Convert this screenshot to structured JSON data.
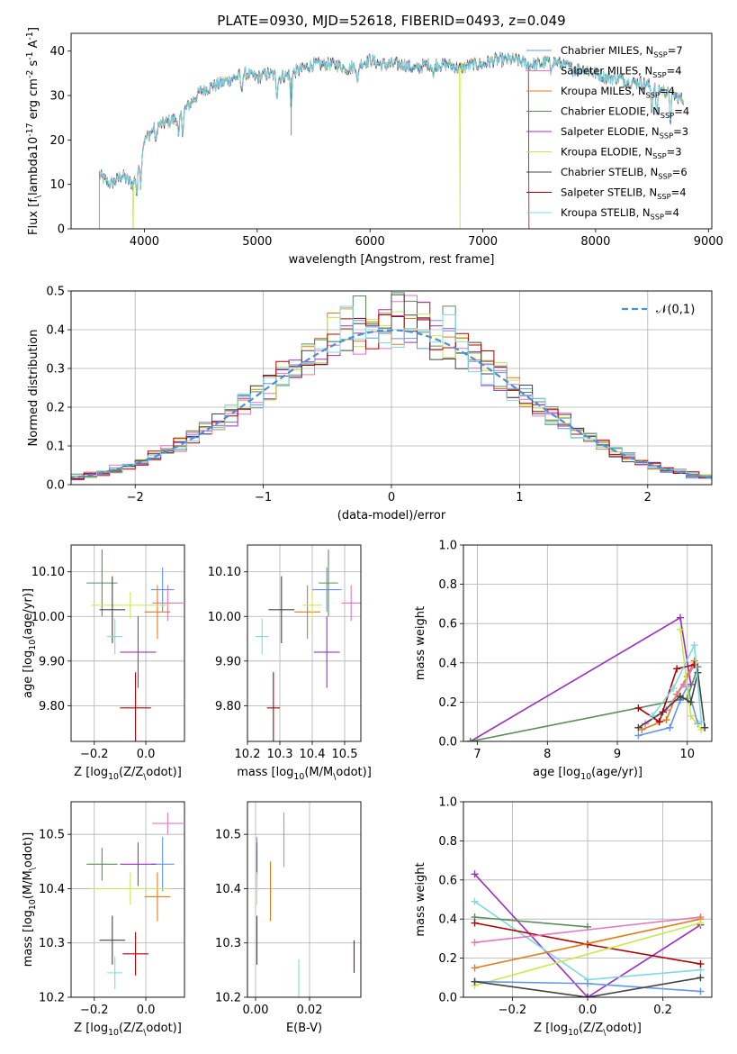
{
  "colors": {
    "chab_miles": "#6495ed",
    "salp_miles": "#e377c2",
    "krou_miles": "#e07b1a",
    "chab_elodie": "#5b8c5a",
    "salp_elodie": "#9b30c0",
    "krou_elodie": "#c9e84b",
    "chab_stelib": "#444444",
    "salp_stelib": "#b30000",
    "krou_stelib": "#80d8e0",
    "normal_curve": "#4a90d9",
    "grid": "#b0b0b0"
  },
  "chart_data": [
    {
      "type": "line",
      "id": "spectrum",
      "title": "PLATE=0930, MJD=52618, FIBERID=0493, z=0.049",
      "xlabel": "wavelength [Angstrom, rest frame]",
      "ylabel": "Flux [f$_\\lambda$10$^{-17}$ erg cm$^{-2}$ s$^{-1}$ A$^{-1}$]",
      "xlim": [
        3350,
        9030
      ],
      "ylim": [
        0,
        44
      ],
      "xticks": [
        4000,
        5000,
        6000,
        7000,
        8000,
        9000
      ],
      "yticks": [
        0,
        10,
        20,
        30,
        40
      ],
      "grid": false,
      "legend_position": "upper-right",
      "legend": [
        "Chabrier MILES, N$_{SSP}$=7",
        "Salpeter MILES, N$_{SSP}$=4",
        "Kroupa MILES, N$_{SSP}$=4",
        "Chabrier ELODIE, N$_{SSP}$=4",
        "Salpeter ELODIE, N$_{SSP}$=3",
        "Kroupa ELODIE, N$_{SSP}$=3",
        "Chabrier STELIB, N$_{SSP}$=6",
        "Salpeter STELIB, N$_{SSP}$=4",
        "Kroupa STELIB, N$_{SSP}$=4"
      ],
      "continuum": [
        [
          3600,
          12
        ],
        [
          3700,
          10
        ],
        [
          3800,
          12
        ],
        [
          3900,
          10
        ],
        [
          4000,
          20
        ],
        [
          4100,
          23
        ],
        [
          4200,
          24
        ],
        [
          4300,
          25
        ],
        [
          4400,
          28
        ],
        [
          4500,
          31
        ],
        [
          4600,
          32
        ],
        [
          4700,
          33
        ],
        [
          4800,
          34
        ],
        [
          4900,
          35
        ],
        [
          5000,
          34
        ],
        [
          5100,
          35
        ],
        [
          5200,
          34
        ],
        [
          5300,
          35
        ],
        [
          5400,
          36
        ],
        [
          5500,
          37
        ],
        [
          5600,
          37
        ],
        [
          5700,
          37
        ],
        [
          5800,
          36
        ],
        [
          5900,
          37
        ],
        [
          6000,
          38
        ],
        [
          6100,
          37
        ],
        [
          6200,
          37
        ],
        [
          6300,
          37
        ],
        [
          6400,
          36
        ],
        [
          6500,
          37
        ],
        [
          6600,
          37
        ],
        [
          6700,
          37
        ],
        [
          6800,
          36
        ],
        [
          6900,
          37
        ],
        [
          7000,
          37
        ],
        [
          7100,
          38
        ],
        [
          7200,
          38
        ],
        [
          7300,
          38
        ],
        [
          7400,
          37
        ],
        [
          7500,
          37
        ],
        [
          7600,
          38
        ],
        [
          7700,
          37
        ],
        [
          7800,
          36
        ],
        [
          7900,
          36
        ],
        [
          8000,
          35
        ],
        [
          8100,
          34
        ],
        [
          8200,
          34
        ],
        [
          8300,
          33
        ],
        [
          8400,
          33
        ],
        [
          8500,
          32
        ],
        [
          8600,
          31
        ],
        [
          8700,
          30
        ],
        [
          8780,
          29
        ]
      ],
      "dips": [
        [
          3934,
          6
        ],
        [
          3968,
          7
        ],
        [
          4102,
          4
        ],
        [
          4304,
          5
        ],
        [
          4340,
          4
        ],
        [
          4861,
          4
        ],
        [
          5175,
          4
        ],
        [
          5300,
          8
        ],
        [
          5890,
          5
        ],
        [
          6563,
          3
        ],
        [
          7600,
          3
        ],
        [
          8498,
          5
        ],
        [
          8542,
          7
        ],
        [
          8662,
          6
        ]
      ],
      "dropouts": [
        {
          "series": "krou_elodie",
          "x": 3900
        },
        {
          "series": "krou_elodie",
          "x": 6800
        },
        {
          "series": "salp_stelib",
          "x": 7410
        }
      ]
    },
    {
      "type": "histogram",
      "id": "residuals",
      "xlabel": "(data-model)/error",
      "ylabel": "Normed distribution",
      "xlim": [
        -2.5,
        2.5
      ],
      "ylim": [
        0,
        0.5
      ],
      "xticks": [
        -2,
        -1,
        0,
        1,
        2
      ],
      "yticks": [
        0.0,
        0.1,
        0.2,
        0.3,
        0.4,
        0.5
      ],
      "bin_width": 0.1,
      "grid": true,
      "legend_position": "upper-right",
      "legend": [
        "$\\mathcal{N}(0,1)$"
      ],
      "curve": "normal(0,1)"
    },
    {
      "type": "errorbar",
      "id": "age_vs_z",
      "xlabel": "Z [log$_{10}$(Z/Z$_\\odot$)]",
      "ylabel": "age  [log$_{10}$(age/yr)]",
      "xlim": [
        -0.29,
        0.15
      ],
      "ylim": [
        9.72,
        10.16
      ],
      "xticks": [
        -0.2,
        0.0
      ],
      "yticks": [
        9.8,
        9.9,
        10.0,
        10.1
      ],
      "grid": true,
      "points": [
        {
          "series": "chab_miles",
          "x": 0.065,
          "y": 10.06,
          "xerr": 0.045,
          "yerr": 0.05
        },
        {
          "series": "salp_miles",
          "x": 0.085,
          "y": 10.03,
          "xerr": 0.06,
          "yerr": 0.04
        },
        {
          "series": "krou_miles",
          "x": 0.045,
          "y": 10.01,
          "xerr": 0.05,
          "yerr": 0.06
        },
        {
          "series": "chab_elodie",
          "x": -0.17,
          "y": 10.075,
          "xerr": 0.06,
          "yerr": 0.075
        },
        {
          "series": "salp_elodie",
          "x": -0.03,
          "y": 9.92,
          "xerr": 0.07,
          "yerr": 0.08
        },
        {
          "series": "krou_elodie",
          "x": -0.06,
          "y": 10.025,
          "xerr": 0.15,
          "yerr": 0.03
        },
        {
          "series": "chab_stelib",
          "x": -0.13,
          "y": 10.015,
          "xerr": 0.05,
          "yerr": 0.075
        },
        {
          "series": "salp_stelib",
          "x": -0.04,
          "y": 9.795,
          "xerr": 0.06,
          "yerr": 0.08
        },
        {
          "series": "krou_stelib",
          "x": -0.12,
          "y": 9.955,
          "xerr": 0.03,
          "yerr": 0.04
        }
      ]
    },
    {
      "type": "errorbar",
      "id": "age_vs_mass",
      "xlabel": "mass [log$_{10}$(M/M$_\\odot$)]",
      "ylabel": "",
      "xlim": [
        10.2,
        10.55
      ],
      "ylim": [
        9.72,
        10.16
      ],
      "xticks": [
        10.2,
        10.3,
        10.4,
        10.5
      ],
      "yticks": [
        9.8,
        9.9,
        10.0,
        10.1
      ],
      "grid": true,
      "points": [
        {
          "series": "chab_miles",
          "x": 10.445,
          "y": 10.06,
          "xerr": 0.045,
          "yerr": 0.05
        },
        {
          "series": "salp_miles",
          "x": 10.52,
          "y": 10.03,
          "xerr": 0.03,
          "yerr": 0.04
        },
        {
          "series": "krou_miles",
          "x": 10.385,
          "y": 10.01,
          "xerr": 0.04,
          "yerr": 0.06
        },
        {
          "series": "chab_elodie",
          "x": 10.45,
          "y": 10.075,
          "xerr": 0.03,
          "yerr": 0.075
        },
        {
          "series": "salp_elodie",
          "x": 10.445,
          "y": 9.92,
          "xerr": 0.04,
          "yerr": 0.08
        },
        {
          "series": "krou_elodie",
          "x": 10.4,
          "y": 10.025,
          "xerr": 0.03,
          "yerr": 0.03
        },
        {
          "series": "chab_stelib",
          "x": 10.305,
          "y": 10.015,
          "xerr": 0.04,
          "yerr": 0.075
        },
        {
          "series": "salp_stelib",
          "x": 10.28,
          "y": 9.795,
          "xerr": 0.02,
          "yerr": 0.08
        },
        {
          "series": "krou_stelib",
          "x": 10.245,
          "y": 9.955,
          "xerr": 0.02,
          "yerr": 0.04
        }
      ]
    },
    {
      "type": "line",
      "id": "weight_vs_age",
      "xlabel": "age  [log$_{10}$(age/yr)]",
      "ylabel": "mass weight",
      "xlim": [
        6.8,
        10.35
      ],
      "ylim": [
        0,
        1.0
      ],
      "xticks": [
        7,
        8,
        9,
        10
      ],
      "yticks": [
        0.0,
        0.2,
        0.4,
        0.6,
        0.8,
        1.0
      ],
      "grid": true,
      "series": [
        {
          "series": "salp_elodie",
          "points": [
            [
              6.9,
              0.0
            ],
            [
              9.9,
              0.63
            ],
            [
              10.05,
              0.29
            ]
          ]
        },
        {
          "series": "chab_elodie",
          "points": [
            [
              6.9,
              0.0
            ],
            [
              10.0,
              0.22
            ],
            [
              10.15,
              0.38
            ]
          ]
        },
        {
          "series": "chab_miles",
          "points": [
            [
              9.3,
              0.03
            ],
            [
              9.75,
              0.07
            ],
            [
              9.9,
              0.21
            ],
            [
              10.0,
              0.28
            ],
            [
              10.15,
              0.09
            ]
          ]
        },
        {
          "series": "krou_miles",
          "points": [
            [
              9.35,
              0.06
            ],
            [
              9.7,
              0.11
            ],
            [
              9.85,
              0.24
            ],
            [
              10.0,
              0.33
            ],
            [
              10.1,
              0.41
            ]
          ]
        },
        {
          "series": "salp_miles",
          "points": [
            [
              9.4,
              0.09
            ],
            [
              9.7,
              0.16
            ],
            [
              9.95,
              0.29
            ],
            [
              10.1,
              0.39
            ]
          ]
        },
        {
          "series": "krou_elodie",
          "points": [
            [
              9.9,
              0.57
            ],
            [
              10.05,
              0.13
            ],
            [
              10.2,
              0.06
            ]
          ]
        },
        {
          "series": "chab_stelib",
          "points": [
            [
              9.3,
              0.07
            ],
            [
              9.65,
              0.15
            ],
            [
              9.9,
              0.23
            ],
            [
              10.05,
              0.2
            ],
            [
              10.15,
              0.35
            ],
            [
              10.25,
              0.07
            ]
          ]
        },
        {
          "series": "salp_stelib",
          "points": [
            [
              9.3,
              0.17
            ],
            [
              9.6,
              0.1
            ],
            [
              9.85,
              0.37
            ],
            [
              10.1,
              0.39
            ]
          ]
        },
        {
          "series": "krou_stelib",
          "points": [
            [
              9.5,
              0.13
            ],
            [
              9.8,
              0.27
            ],
            [
              10.1,
              0.49
            ],
            [
              10.2,
              0.1
            ]
          ]
        }
      ]
    },
    {
      "type": "errorbar",
      "id": "mass_vs_z",
      "xlabel": "Z [log$_{10}$(Z/Z$_\\odot$)]",
      "ylabel": "mass [log$_{10}$(M/M$_\\odot$)]",
      "xlim": [
        -0.29,
        0.15
      ],
      "ylim": [
        10.2,
        10.56
      ],
      "xticks": [
        -0.2,
        0.0
      ],
      "yticks": [
        10.2,
        10.3,
        10.4,
        10.5
      ],
      "grid": true,
      "points": [
        {
          "series": "chab_miles",
          "x": 0.065,
          "y": 10.445,
          "xerr": 0.045,
          "yerr": 0.05
        },
        {
          "series": "salp_miles",
          "x": 0.085,
          "y": 10.52,
          "xerr": 0.06,
          "yerr": 0.02
        },
        {
          "series": "krou_miles",
          "x": 0.045,
          "y": 10.385,
          "xerr": 0.05,
          "yerr": 0.045
        },
        {
          "series": "chab_elodie",
          "x": -0.17,
          "y": 10.445,
          "xerr": 0.06,
          "yerr": 0.03
        },
        {
          "series": "salp_elodie",
          "x": -0.03,
          "y": 10.445,
          "xerr": 0.07,
          "yerr": 0.04
        },
        {
          "series": "krou_elodie",
          "x": -0.06,
          "y": 10.4,
          "xerr": 0.15,
          "yerr": 0.03
        },
        {
          "series": "chab_stelib",
          "x": -0.13,
          "y": 10.305,
          "xerr": 0.05,
          "yerr": 0.045
        },
        {
          "series": "salp_stelib",
          "x": -0.04,
          "y": 10.28,
          "xerr": 0.05,
          "yerr": 0.04
        },
        {
          "series": "krou_stelib",
          "x": -0.12,
          "y": 10.245,
          "xerr": 0.03,
          "yerr": 0.03
        }
      ]
    },
    {
      "type": "errorbar",
      "id": "mass_vs_ebv",
      "xlabel": "E(B-V)",
      "ylabel": "",
      "xlim": [
        -0.003,
        0.039
      ],
      "ylim": [
        10.2,
        10.56
      ],
      "xticks": [
        0.0,
        0.02
      ],
      "yticks": [
        10.2,
        10.3,
        10.4,
        10.5
      ],
      "grid": true,
      "points": [
        {
          "series": "chab_miles",
          "x": 0.0005,
          "y": 10.445,
          "xerr": 0,
          "yerr": 0.05
        },
        {
          "series": "salp_miles",
          "x": 0.0105,
          "y": 10.49,
          "xerr": 0,
          "yerr": 0.05
        },
        {
          "series": "krou_miles",
          "x": 0.0055,
          "y": 10.395,
          "xerr": 0,
          "yerr": 0.055
        },
        {
          "series": "chab_elodie",
          "x": 0.0005,
          "y": 10.445,
          "xerr": 0,
          "yerr": 0.03
        },
        {
          "series": "salp_elodie",
          "x": 0.0005,
          "y": 10.445,
          "xerr": 0,
          "yerr": 0.04
        },
        {
          "series": "krou_elodie",
          "x": 0.0005,
          "y": 10.4,
          "xerr": 0,
          "yerr": 0.03
        },
        {
          "series": "chab_stelib",
          "x": 0.0005,
          "y": 10.305,
          "xerr": 0,
          "yerr": 0.045
        },
        {
          "series": "salp_stelib",
          "x": 0.0365,
          "y": 10.275,
          "xerr": 0,
          "yerr": 0.03
        },
        {
          "series": "krou_stelib",
          "x": 0.016,
          "y": 10.235,
          "xerr": 0,
          "yerr": 0.035
        }
      ]
    },
    {
      "type": "line",
      "id": "weight_vs_z",
      "xlabel": "Z [log$_{10}$(Z/Z$_\\odot$)]",
      "ylabel": "mass weight",
      "xlim": [
        -0.33,
        0.33
      ],
      "ylim": [
        0,
        1.0
      ],
      "xticks": [
        -0.2,
        0.0,
        0.2
      ],
      "yticks": [
        0.0,
        0.2,
        0.4,
        0.6,
        0.8,
        1.0
      ],
      "grid": true,
      "series": [
        {
          "series": "salp_elodie",
          "points": [
            [
              -0.3,
              0.63
            ],
            [
              0.0,
              0.0
            ],
            [
              0.3,
              0.37
            ]
          ]
        },
        {
          "series": "krou_stelib",
          "points": [
            [
              -0.3,
              0.49
            ],
            [
              0.0,
              0.09
            ],
            [
              0.3,
              0.14
            ]
          ]
        },
        {
          "series": "chab_elodie",
          "points": [
            [
              -0.3,
              0.41
            ],
            [
              0.0,
              0.36
            ]
          ]
        },
        {
          "series": "salp_stelib",
          "points": [
            [
              -0.3,
              0.38
            ],
            [
              0.0,
              0.27
            ],
            [
              0.3,
              0.17
            ]
          ]
        },
        {
          "series": "salp_miles",
          "points": [
            [
              -0.3,
              0.28
            ],
            [
              0.3,
              0.41
            ]
          ]
        },
        {
          "series": "krou_miles",
          "points": [
            [
              -0.3,
              0.15
            ],
            [
              0.3,
              0.4
            ]
          ]
        },
        {
          "series": "krou_elodie",
          "points": [
            [
              -0.3,
              0.06
            ],
            [
              0.3,
              0.38
            ]
          ]
        },
        {
          "series": "chab_miles",
          "points": [
            [
              -0.3,
              0.08
            ],
            [
              0.0,
              0.07
            ],
            [
              0.3,
              0.03
            ]
          ]
        },
        {
          "series": "chab_stelib",
          "points": [
            [
              -0.3,
              0.08
            ],
            [
              0.0,
              0.0
            ],
            [
              0.3,
              0.1
            ]
          ]
        }
      ]
    }
  ]
}
